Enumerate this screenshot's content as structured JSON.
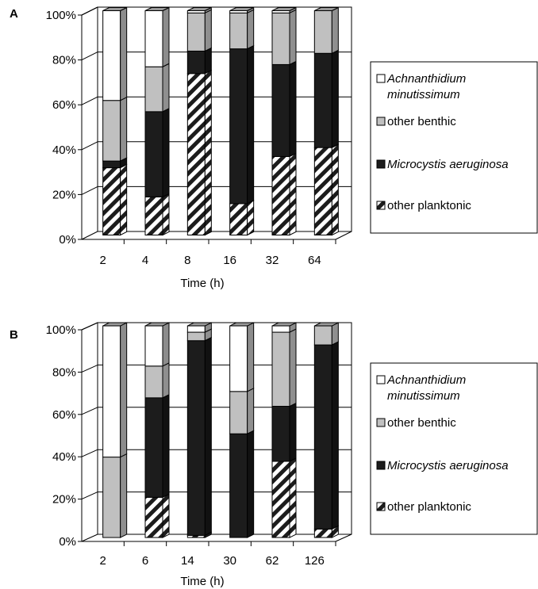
{
  "chart_data": [
    {
      "type": "bar",
      "stacked": true,
      "percent": true,
      "panel": "A",
      "xlabel": "Time (h)",
      "ylabel": "",
      "ylim": [
        0,
        100
      ],
      "yticks": [
        "0%",
        "20%",
        "40%",
        "60%",
        "80%",
        "100%"
      ],
      "grid": true,
      "legend_position": "right",
      "categories": [
        "2",
        "4",
        "8",
        "16",
        "32",
        "64"
      ],
      "series": [
        {
          "name": "other planktonic",
          "values": [
            30,
            17,
            72,
            14,
            35,
            39
          ]
        },
        {
          "name": "Microcystis aeruginosa",
          "values": [
            3,
            38,
            10,
            69,
            41,
            42
          ]
        },
        {
          "name": "other benthic",
          "values": [
            27,
            20,
            17,
            16,
            23,
            19
          ]
        },
        {
          "name": "Achnanthidium minutissimum",
          "values": [
            40,
            25,
            1,
            1,
            1,
            0
          ]
        }
      ]
    },
    {
      "type": "bar",
      "stacked": true,
      "percent": true,
      "panel": "B",
      "xlabel": "Time (h)",
      "ylabel": "",
      "ylim": [
        0,
        100
      ],
      "yticks": [
        "0%",
        "20%",
        "40%",
        "60%",
        "80%",
        "100%"
      ],
      "grid": true,
      "legend_position": "right",
      "categories": [
        "2",
        "6",
        "14",
        "30",
        "62",
        "126"
      ],
      "series": [
        {
          "name": "other planktonic",
          "values": [
            0,
            19,
            1,
            0,
            36,
            4
          ]
        },
        {
          "name": "Microcystis aeruginosa",
          "values": [
            0,
            47,
            92,
            49,
            26,
            87
          ]
        },
        {
          "name": "other benthic",
          "values": [
            38,
            15,
            4,
            20,
            35,
            9
          ]
        },
        {
          "name": "Achnanthidium minutissimum",
          "values": [
            62,
            19,
            3,
            31,
            3,
            0
          ]
        }
      ]
    }
  ],
  "legend": [
    {
      "line1": "Achnanthidium",
      "line2": "minutissimum",
      "italic": true
    },
    {
      "line1": "other benthic",
      "line2": "",
      "italic": false
    },
    {
      "line1": "Microcystis aeruginosa",
      "line2": "",
      "italic": true
    },
    {
      "line1": "other planktonic",
      "line2": "",
      "italic": false
    }
  ],
  "colors": {
    "achnanthidium": "#ffffff",
    "other_benthic": "#c0c0c0",
    "microcystis": "#1c1c1c",
    "other_planktonic_stripe": "#1c1c1c",
    "bar_side": "#8c8c8c",
    "bar_top": "#9a9a9a",
    "axis": "#000000",
    "grid": "#000000"
  }
}
